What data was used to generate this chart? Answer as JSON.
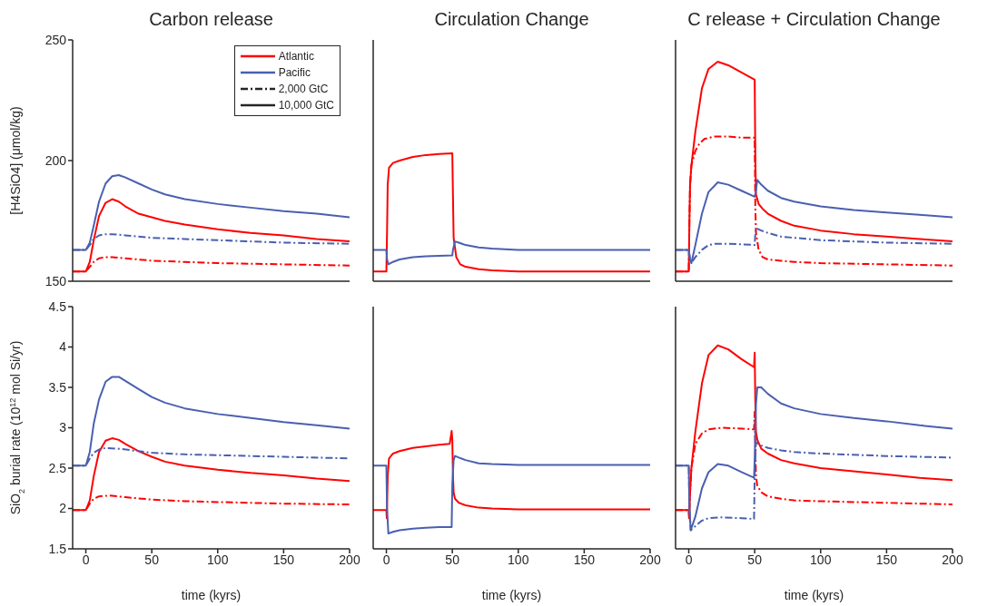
{
  "chart_data": [
    {
      "type": "line",
      "title": "Carbon release",
      "ylabel": "[H4SiO4] (μmol/kg)",
      "xlim": [
        -10,
        200
      ],
      "xticks": [
        0,
        50,
        100,
        150,
        200
      ],
      "ylim": [
        150,
        250
      ],
      "yticks": [
        150,
        200,
        250
      ],
      "tick_labels": "y",
      "legend": "top right",
      "series": [
        {
          "name": "Atlantic",
          "color": "#ff0000",
          "line_style": "solid",
          "x": [
            -10,
            0,
            3,
            6,
            10,
            15,
            20,
            25,
            30,
            40,
            50,
            60,
            75,
            100,
            125,
            150,
            175,
            200
          ],
          "values": [
            154,
            154,
            158,
            167,
            177,
            182.5,
            184,
            183,
            181,
            178,
            176.5,
            175,
            173.5,
            171.5,
            170,
            169,
            167.5,
            166.5
          ]
        },
        {
          "name": "Pacific",
          "color": "#4a5fb0",
          "line_style": "solid",
          "x": [
            -10,
            0,
            3,
            6,
            10,
            15,
            20,
            25,
            30,
            40,
            50,
            60,
            75,
            100,
            125,
            150,
            175,
            200
          ],
          "values": [
            163,
            163,
            166,
            173,
            183,
            190.5,
            193.5,
            194,
            193,
            190.5,
            188,
            186,
            184,
            182,
            180.5,
            179,
            178,
            176.5
          ]
        },
        {
          "name": "2,000 GtC",
          "color": "#262626",
          "line_style": "dashed"
        },
        {
          "name": "10,000 GtC",
          "color": "#262626",
          "line_style": "solid"
        },
        {
          "color": "#ff0000",
          "line_style": "dashed",
          "x": [
            -10,
            0,
            3,
            6,
            10,
            15,
            20,
            30,
            50,
            75,
            100,
            150,
            200
          ],
          "values": [
            154,
            154,
            156,
            158,
            159.5,
            160,
            160,
            159.5,
            158.5,
            158,
            157.5,
            157,
            156.5
          ]
        },
        {
          "color": "#4a5fb0",
          "line_style": "dashed",
          "x": [
            -10,
            0,
            3,
            6,
            10,
            15,
            20,
            30,
            50,
            75,
            100,
            150,
            200
          ],
          "values": [
            163,
            163,
            165,
            167.5,
            169,
            169.5,
            169.5,
            169,
            168,
            167.5,
            167,
            166,
            165.5
          ]
        }
      ]
    },
    {
      "type": "line",
      "title": "Circulation Change",
      "xlim": [
        -10,
        200
      ],
      "xticks": [
        0,
        50,
        100,
        150,
        200
      ],
      "ylim": [
        150,
        250
      ],
      "yticks": [
        150,
        200,
        250
      ],
      "tick_labels": false,
      "series": [
        {
          "color": "#ff0000",
          "line_style": "solid",
          "x": [
            -10,
            0,
            0.5,
            1,
            2,
            5,
            10,
            20,
            30,
            40,
            50,
            50.5,
            51,
            53,
            56,
            60,
            70,
            80,
            100,
            150,
            200
          ],
          "values": [
            154,
            154,
            170,
            190,
            197,
            199,
            200,
            201.5,
            202.3,
            202.7,
            203,
            185,
            168,
            160,
            157,
            156,
            155,
            154.5,
            154,
            154,
            154
          ]
        },
        {
          "color": "#4a5fb0",
          "line_style": "solid",
          "x": [
            -10,
            0,
            0.5,
            1.5,
            5,
            10,
            20,
            30,
            40,
            50,
            50.5,
            52,
            55,
            60,
            70,
            80,
            100,
            150,
            200
          ],
          "values": [
            163,
            163,
            159,
            157,
            158,
            159,
            160,
            160.3,
            160.5,
            160.7,
            163,
            166.5,
            166,
            165,
            164,
            163.5,
            163,
            163,
            163
          ]
        }
      ]
    },
    {
      "type": "line",
      "title": "C release + Circulation Change",
      "xlim": [
        -10,
        200
      ],
      "xticks": [
        0,
        50,
        100,
        150,
        200
      ],
      "ylim": [
        150,
        250
      ],
      "yticks": [
        150,
        200,
        250
      ],
      "tick_labels": false,
      "series": [
        {
          "color": "#ff0000",
          "line_style": "solid",
          "x": [
            -10,
            0,
            0.5,
            1,
            2,
            5,
            10,
            15,
            22,
            30,
            40,
            50,
            50.5,
            51,
            53,
            56,
            60,
            70,
            80,
            100,
            125,
            150,
            175,
            200
          ],
          "values": [
            154,
            154,
            175,
            190,
            198,
            212,
            230,
            238,
            241,
            239.5,
            236.5,
            233.5,
            200,
            186,
            182,
            180,
            178,
            175,
            173,
            171,
            169.5,
            168.5,
            167.5,
            166.5
          ]
        },
        {
          "color": "#ff0000",
          "line_style": "dashed",
          "x": [
            -10,
            0,
            0.5,
            1,
            2,
            3,
            5,
            8,
            12,
            20,
            30,
            40,
            50,
            50.5,
            51,
            53,
            56,
            60,
            70,
            80,
            100,
            150,
            200
          ],
          "values": [
            154,
            154,
            175,
            190,
            198,
            200,
            204,
            207,
            209,
            210,
            210,
            209.5,
            209.5,
            180,
            170,
            163,
            160,
            159,
            158.5,
            158,
            157.5,
            157,
            156.5
          ]
        },
        {
          "color": "#4a5fb0",
          "line_style": "solid",
          "x": [
            -10,
            0,
            1,
            2,
            5,
            10,
            15,
            22,
            30,
            40,
            50,
            50.5,
            52,
            55,
            60,
            70,
            80,
            100,
            125,
            150,
            175,
            200
          ],
          "values": [
            163,
            163,
            159,
            157.5,
            165,
            178,
            187,
            191,
            190,
            187.5,
            185,
            186,
            192,
            190,
            187.5,
            184.5,
            183,
            181,
            179.5,
            178.5,
            177.5,
            176.5
          ]
        },
        {
          "color": "#4a5fb0",
          "line_style": "dashed",
          "x": [
            -10,
            0,
            1,
            2,
            5,
            10,
            15,
            20,
            30,
            40,
            50,
            50.5,
            51,
            55,
            60,
            70,
            80,
            100,
            150,
            200
          ],
          "values": [
            163,
            163,
            159,
            157.5,
            160,
            163,
            165,
            165.5,
            165.5,
            165.3,
            165,
            170,
            172,
            171,
            170,
            168.5,
            168,
            167,
            166,
            165.5
          ]
        }
      ]
    },
    {
      "type": "line",
      "xlabel": "time (kyrs)",
      "ylabel": "SiO$_{2}$ burial rate (10$^{12}$ mol Si/yr)",
      "xlim": [
        -10,
        200
      ],
      "xticks": [
        0,
        50,
        100,
        150,
        200
      ],
      "ylim": [
        1.5,
        4.5
      ],
      "yticks": [
        1.5,
        2,
        2.5,
        3,
        3.5,
        4,
        4.5
      ],
      "series": [
        {
          "color": "#ff0000",
          "line_style": "solid",
          "x": [
            -10,
            0,
            3,
            6,
            10,
            15,
            20,
            25,
            30,
            40,
            50,
            60,
            75,
            100,
            125,
            150,
            175,
            200
          ],
          "values": [
            1.98,
            1.98,
            2.1,
            2.4,
            2.7,
            2.84,
            2.87,
            2.85,
            2.8,
            2.71,
            2.64,
            2.58,
            2.53,
            2.48,
            2.44,
            2.41,
            2.37,
            2.34
          ]
        },
        {
          "color": "#ff0000",
          "line_style": "dashed",
          "x": [
            -10,
            0,
            3,
            6,
            10,
            18,
            30,
            50,
            75,
            100,
            150,
            200
          ],
          "values": [
            1.98,
            1.98,
            2.06,
            2.12,
            2.15,
            2.16,
            2.14,
            2.11,
            2.09,
            2.08,
            2.06,
            2.05
          ]
        },
        {
          "color": "#4a5fb0",
          "line_style": "solid",
          "x": [
            -10,
            0,
            3,
            6,
            10,
            15,
            20,
            25,
            30,
            40,
            50,
            60,
            75,
            100,
            125,
            150,
            175,
            200
          ],
          "values": [
            2.53,
            2.53,
            2.7,
            3.05,
            3.35,
            3.57,
            3.63,
            3.63,
            3.58,
            3.48,
            3.38,
            3.31,
            3.24,
            3.17,
            3.12,
            3.07,
            3.03,
            2.99
          ]
        },
        {
          "color": "#4a5fb0",
          "line_style": "dashed",
          "x": [
            -10,
            0,
            3,
            6,
            10,
            15,
            25,
            40,
            50,
            75,
            100,
            150,
            200
          ],
          "values": [
            2.53,
            2.53,
            2.62,
            2.69,
            2.73,
            2.75,
            2.74,
            2.71,
            2.69,
            2.67,
            2.66,
            2.64,
            2.62
          ]
        }
      ]
    },
    {
      "type": "line",
      "xlabel": "time (kyrs)",
      "xlim": [
        -10,
        200
      ],
      "xticks": [
        0,
        50,
        100,
        150,
        200
      ],
      "ylim": [
        1.5,
        4.5
      ],
      "yticks": [
        1.5,
        2,
        2.5,
        3,
        3.5,
        4,
        4.5
      ],
      "tick_labels": "x",
      "series": [
        {
          "color": "#ff0000",
          "line_style": "solid",
          "x": [
            -10,
            0,
            0.3,
            1,
            2,
            5,
            10,
            20,
            30,
            40,
            48,
            49.5,
            50,
            50.5,
            51,
            52,
            55,
            60,
            70,
            80,
            100,
            150,
            200
          ],
          "values": [
            1.98,
            1.98,
            1.88,
            2.4,
            2.62,
            2.68,
            2.71,
            2.75,
            2.77,
            2.79,
            2.8,
            2.96,
            2.85,
            2.4,
            2.2,
            2.12,
            2.07,
            2.04,
            2.01,
            2.0,
            1.99,
            1.99,
            1.99
          ]
        },
        {
          "color": "#4a5fb0",
          "line_style": "solid",
          "x": [
            -10,
            0,
            0.5,
            1.5,
            5,
            10,
            20,
            30,
            40,
            49.5,
            50,
            51,
            52,
            55,
            60,
            70,
            80,
            100,
            150,
            200
          ],
          "values": [
            2.53,
            2.53,
            2.0,
            1.69,
            1.71,
            1.73,
            1.75,
            1.76,
            1.77,
            1.77,
            2.3,
            2.6,
            2.65,
            2.63,
            2.6,
            2.56,
            2.55,
            2.54,
            2.54,
            2.54
          ]
        }
      ]
    },
    {
      "type": "line",
      "xlabel": "time (kyrs)",
      "xlim": [
        -10,
        200
      ],
      "xticks": [
        0,
        50,
        100,
        150,
        200
      ],
      "ylim": [
        1.5,
        4.5
      ],
      "yticks": [
        1.5,
        2,
        2.5,
        3,
        3.5,
        4,
        4.5
      ],
      "tick_labels": "x",
      "series": [
        {
          "color": "#ff0000",
          "line_style": "solid",
          "x": [
            -10,
            0,
            0.3,
            1,
            2,
            5,
            10,
            15,
            22,
            30,
            40,
            49.5,
            50,
            50.5,
            51,
            52,
            55,
            60,
            70,
            80,
            100,
            125,
            150,
            175,
            200
          ],
          "values": [
            1.98,
            1.98,
            1.88,
            2.2,
            2.5,
            2.95,
            3.55,
            3.9,
            4.02,
            3.97,
            3.85,
            3.75,
            3.93,
            3.3,
            2.95,
            2.85,
            2.74,
            2.68,
            2.6,
            2.56,
            2.5,
            2.46,
            2.42,
            2.38,
            2.35
          ]
        },
        {
          "color": "#ff0000",
          "line_style": "dashed",
          "x": [
            -10,
            0,
            0.3,
            1,
            2,
            5,
            10,
            15,
            25,
            40,
            49.5,
            50,
            50.5,
            51,
            52,
            55,
            60,
            70,
            80,
            100,
            150,
            200
          ],
          "values": [
            1.98,
            1.98,
            1.88,
            2.2,
            2.5,
            2.8,
            2.93,
            2.98,
            3.0,
            2.99,
            2.98,
            3.2,
            2.7,
            2.4,
            2.28,
            2.2,
            2.15,
            2.12,
            2.1,
            2.09,
            2.07,
            2.05
          ]
        },
        {
          "color": "#4a5fb0",
          "line_style": "solid",
          "x": [
            -10,
            0,
            0.5,
            1.5,
            5,
            10,
            15,
            22,
            30,
            40,
            49.5,
            50,
            51,
            52,
            55,
            60,
            70,
            80,
            100,
            125,
            150,
            175,
            200
          ],
          "values": [
            2.53,
            2.53,
            2.0,
            1.73,
            1.9,
            2.25,
            2.45,
            2.55,
            2.53,
            2.45,
            2.38,
            2.6,
            3.3,
            3.5,
            3.5,
            3.42,
            3.3,
            3.24,
            3.17,
            3.12,
            3.08,
            3.03,
            2.99
          ]
        },
        {
          "color": "#4a5fb0",
          "line_style": "dashed",
          "x": [
            -10,
            0,
            0.5,
            1.5,
            5,
            10,
            15,
            25,
            40,
            49.5,
            50,
            51,
            52,
            55,
            60,
            70,
            80,
            100,
            150,
            200
          ],
          "values": [
            2.53,
            2.53,
            2.0,
            1.73,
            1.78,
            1.85,
            1.88,
            1.89,
            1.88,
            1.87,
            2.4,
            2.82,
            2.81,
            2.78,
            2.75,
            2.72,
            2.7,
            2.68,
            2.65,
            2.63
          ]
        }
      ]
    }
  ]
}
